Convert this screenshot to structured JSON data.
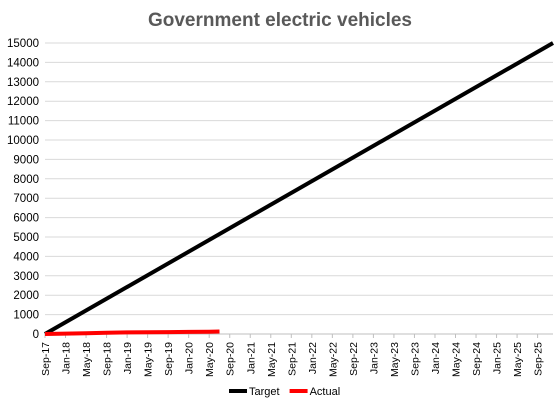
{
  "chart_data": {
    "type": "line",
    "title": "Government electric vehicles",
    "xlabel": "",
    "ylabel": "",
    "ylim": [
      0,
      15000
    ],
    "yticks": [
      "0",
      "1000",
      "2000",
      "3000",
      "4000",
      "5000",
      "6000",
      "7000",
      "8000",
      "9000",
      "10000",
      "11000",
      "12000",
      "13000",
      "14000",
      "15000"
    ],
    "x_tick_labels": [
      "Sep-17",
      "Jan-18",
      "May-18",
      "Sep-18",
      "Jan-19",
      "May-19",
      "Sep-19",
      "Jan-20",
      "May-20",
      "Sep-20",
      "Jan-21",
      "May-21",
      "Sep-21",
      "Jan-22",
      "May-22",
      "Sep-22",
      "Jan-23",
      "May-23",
      "Sep-23",
      "Jan-24",
      "May-24",
      "Sep-24",
      "Jan-25",
      "May-25",
      "Sep-25"
    ],
    "grid": true,
    "legend_position": "bottom",
    "series": [
      {
        "name": "Target",
        "color": "#000000",
        "points": [
          {
            "x": "Sep-17",
            "y": 0
          },
          {
            "x": "Dec-25",
            "y": 15000
          }
        ]
      },
      {
        "name": "Actual",
        "color": "#ff0000",
        "points": [
          {
            "x": "Sep-17",
            "y": 0
          },
          {
            "x": "Jan-18",
            "y": 20
          },
          {
            "x": "May-18",
            "y": 40
          },
          {
            "x": "Sep-18",
            "y": 60
          },
          {
            "x": "Jan-19",
            "y": 80
          },
          {
            "x": "May-19",
            "y": 95
          },
          {
            "x": "Sep-19",
            "y": 100
          },
          {
            "x": "Jan-20",
            "y": 110
          },
          {
            "x": "May-20",
            "y": 120
          },
          {
            "x": "Jul-20",
            "y": 130
          }
        ]
      }
    ]
  }
}
